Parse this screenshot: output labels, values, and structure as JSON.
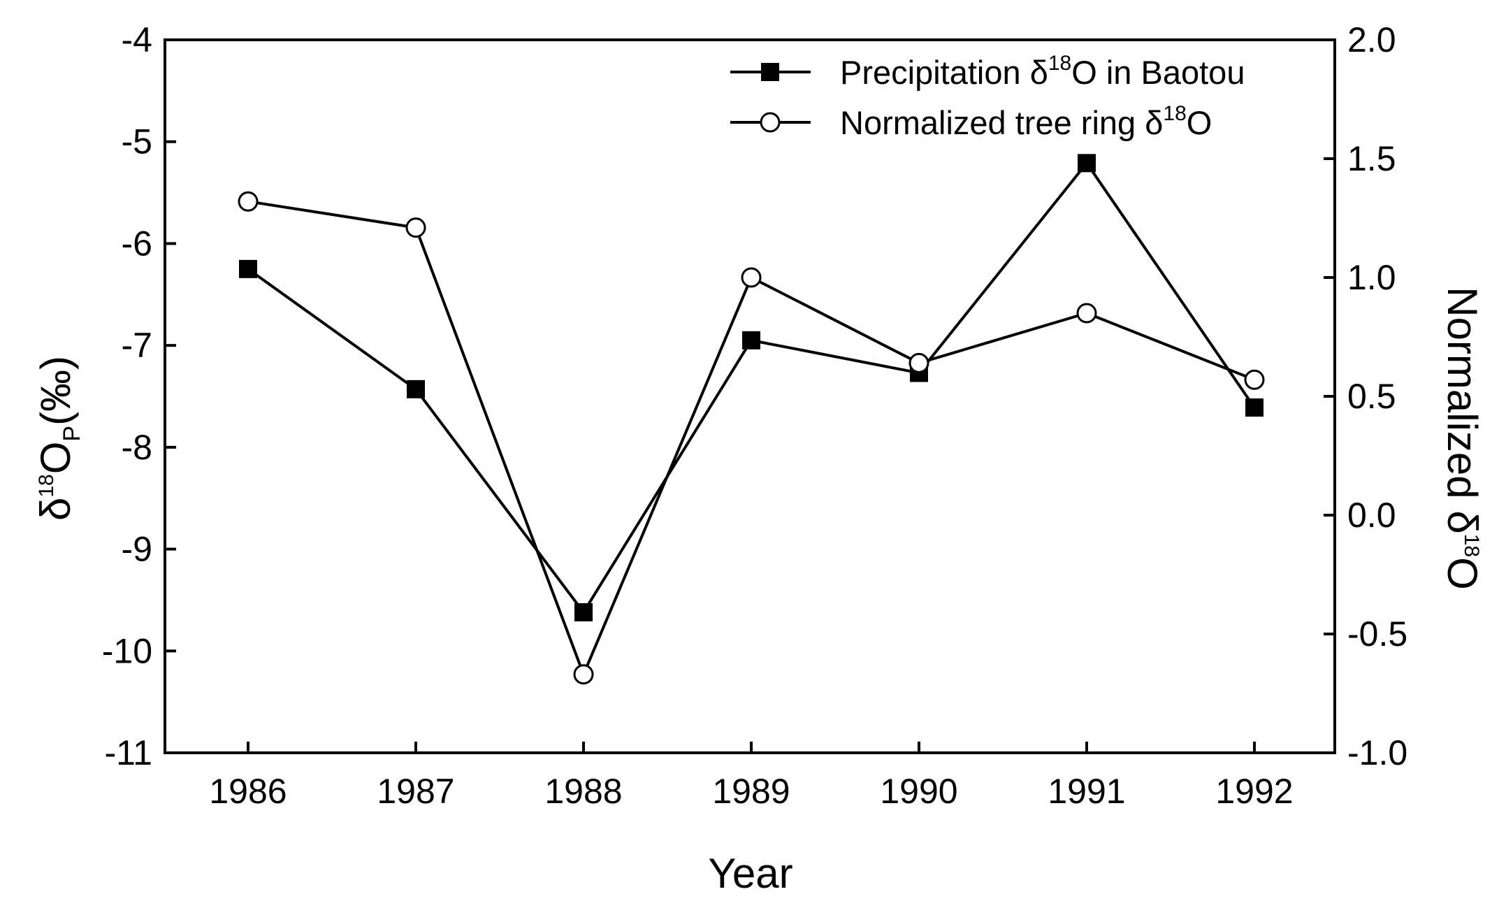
{
  "chart_data": {
    "type": "line",
    "x_title": "Year",
    "categories": [
      1986,
      1987,
      1988,
      1989,
      1990,
      1991,
      1992
    ],
    "left_axis": {
      "title_prefix": "δ",
      "title_sup": "18",
      "title_main": "O",
      "title_sub": "P",
      "title_suffix": "(‰)",
      "ylim": [
        -11,
        -4
      ],
      "ticks": [
        -4,
        -5,
        -6,
        -7,
        -8,
        -9,
        -10,
        -11
      ],
      "tick_labels": [
        "-4",
        "-5",
        "-6",
        "-7",
        "-8",
        "-9",
        "-10",
        "-11"
      ]
    },
    "right_axis": {
      "title_prefix": "Normalized δ",
      "title_sup": "18",
      "title_main": "O",
      "ylim": [
        -1.0,
        2.0
      ],
      "ticks": [
        2.0,
        1.5,
        1.0,
        0.5,
        0.0,
        -0.5,
        -1.0
      ],
      "tick_labels": [
        "2.0",
        "1.5",
        "1.0",
        "0.5",
        "0.0",
        "-0.5",
        "-1.0"
      ]
    },
    "series": [
      {
        "name": "Precipitation δ18O in Baotou",
        "legend_prefix": "Precipitation δ",
        "legend_sup": "18",
        "legend_suffix": "O in Baotou",
        "axis": "left",
        "marker": "filled-square",
        "values": [
          -6.25,
          -7.43,
          -9.62,
          -6.95,
          -7.27,
          -5.21,
          -7.61
        ]
      },
      {
        "name": "Normalized tree ring δ18O",
        "legend_prefix": "Normalized tree ring δ",
        "legend_sup": "18",
        "legend_suffix": "O",
        "axis": "right",
        "marker": "open-circle",
        "values": [
          1.32,
          1.21,
          -0.67,
          1.0,
          0.64,
          0.85,
          0.57
        ]
      }
    ],
    "legend_position": "top-right",
    "grid": false
  }
}
